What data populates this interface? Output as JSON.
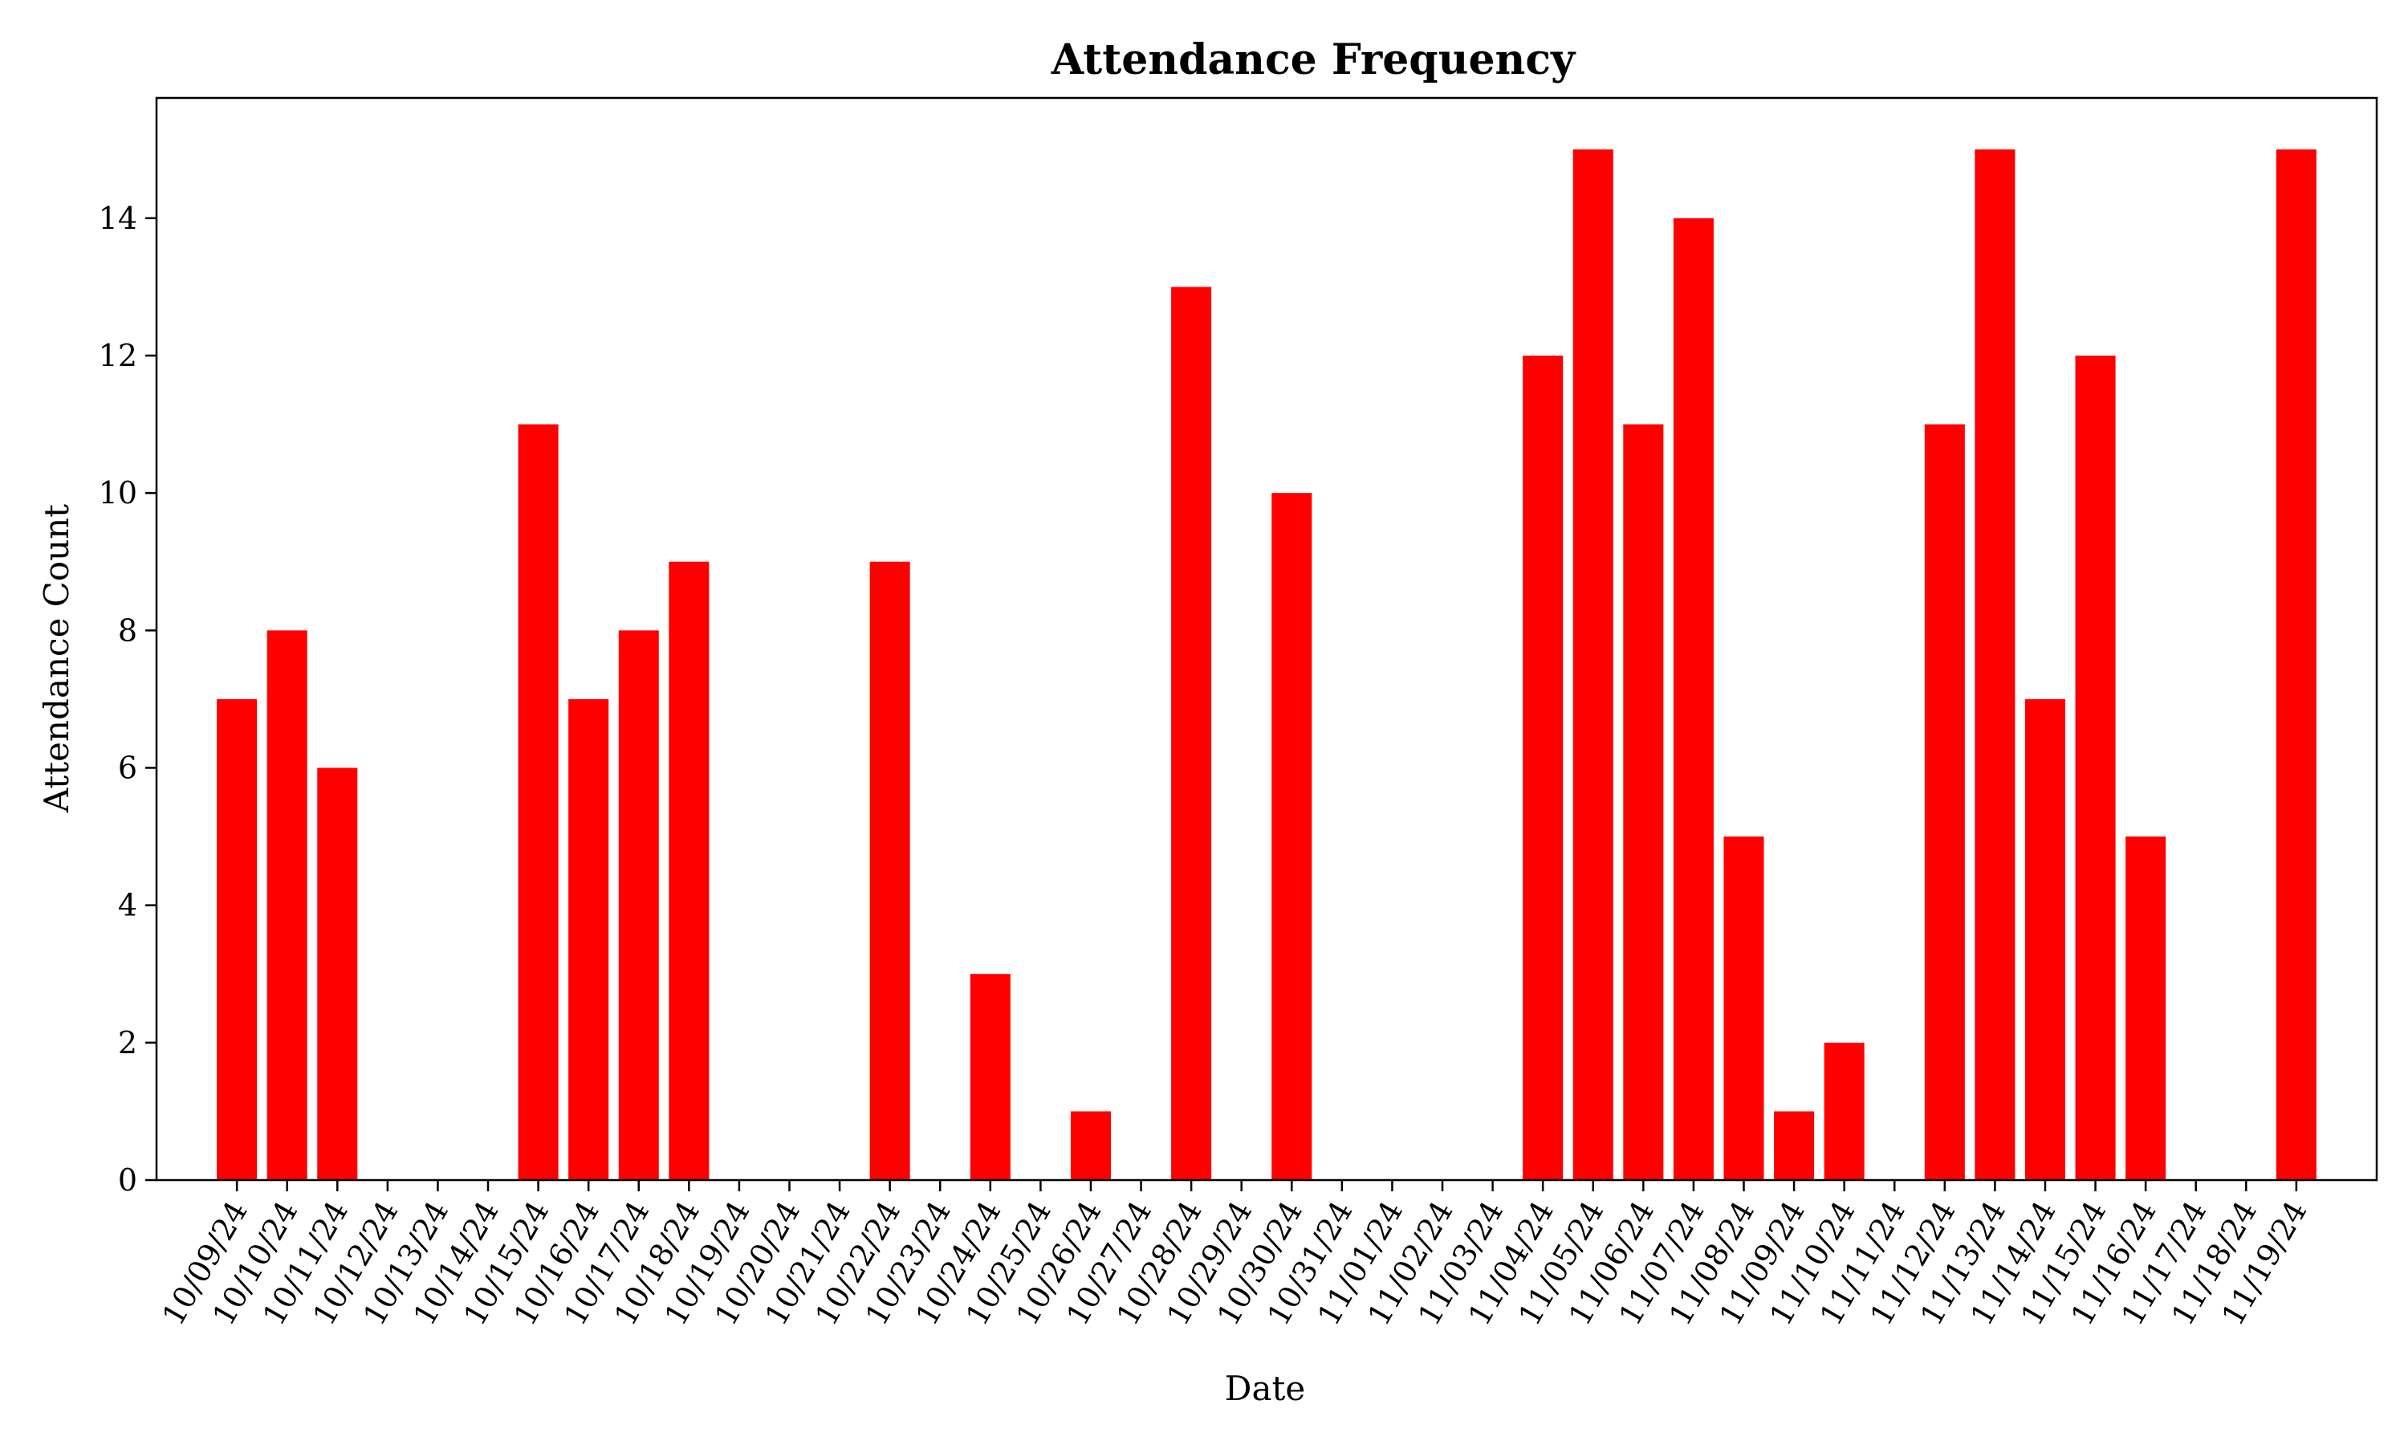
{
  "chart_data": {
    "type": "bar",
    "title": "Attendance Frequency",
    "xlabel": "Date",
    "ylabel": "Attendance Count",
    "ylim": [
      0,
      15.75
    ],
    "yticks": [
      0,
      2,
      4,
      6,
      8,
      10,
      12,
      14
    ],
    "grid": false,
    "legend": "none",
    "bar_color": "#ff0000",
    "categories": [
      "10/09/24",
      "10/10/24",
      "10/11/24",
      "10/12/24",
      "10/13/24",
      "10/14/24",
      "10/15/24",
      "10/16/24",
      "10/17/24",
      "10/18/24",
      "10/19/24",
      "10/20/24",
      "10/21/24",
      "10/22/24",
      "10/23/24",
      "10/24/24",
      "10/25/24",
      "10/26/24",
      "10/27/24",
      "10/28/24",
      "10/29/24",
      "10/30/24",
      "10/31/24",
      "11/01/24",
      "11/02/24",
      "11/03/24",
      "11/04/24",
      "11/05/24",
      "11/06/24",
      "11/07/24",
      "11/08/24",
      "11/09/24",
      "11/10/24",
      "11/11/24",
      "11/12/24",
      "11/13/24",
      "11/14/24",
      "11/15/24",
      "11/16/24",
      "11/17/24",
      "11/18/24",
      "11/19/24"
    ],
    "values": [
      7,
      8,
      6,
      0,
      0,
      0,
      11,
      7,
      8,
      9,
      0,
      0,
      0,
      9,
      0,
      3,
      0,
      1,
      0,
      13,
      0,
      10,
      0,
      0,
      0,
      0,
      12,
      15,
      11,
      14,
      5,
      1,
      2,
      0,
      11,
      15,
      7,
      12,
      5,
      0,
      0,
      15
    ]
  }
}
